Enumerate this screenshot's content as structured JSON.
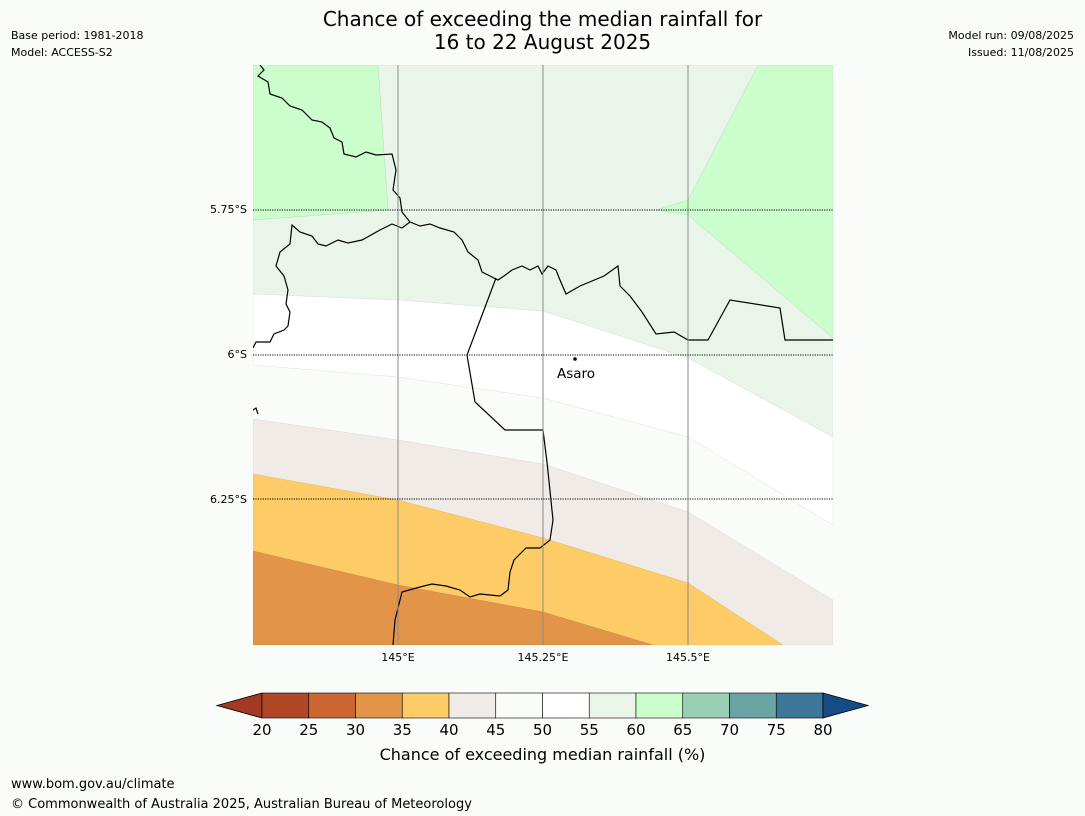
{
  "title": {
    "line1": "Chance of exceeding the median rainfall for",
    "line2": "16 to 22 August 2025"
  },
  "meta_left": {
    "base_period": "Base period: 1981-2018",
    "model": "Model: ACCESS-S2"
  },
  "meta_right": {
    "model_run": "Model run: 09/08/2025",
    "issued": "Issued: 11/08/2025"
  },
  "map": {
    "lat_labels": [
      "5.75°S",
      "6°S",
      "6.25°S"
    ],
    "lon_labels": [
      "145°E",
      "145.25°E",
      "145.5°E"
    ],
    "place": "Asaro"
  },
  "colorbar": {
    "ticks": [
      "20",
      "25",
      "30",
      "35",
      "40",
      "45",
      "50",
      "55",
      "60",
      "65",
      "70",
      "75",
      "80"
    ],
    "colors": [
      "#a13a20",
      "#b04825",
      "#cc6632",
      "#e29549",
      "#fdcc66",
      "#f0ebe7",
      "#fafcf9",
      "#ffffff",
      "#eaf5ea",
      "#ccfdcc",
      "#99cfb4",
      "#6ca3a3",
      "#3c7799",
      "#154c86"
    ],
    "label": "Chance of exceeding median rainfall (%)"
  },
  "footer": {
    "url": "www.bom.gov.au/climate",
    "copyright": "© Commonwealth of Australia 2025, Australian Bureau of Meteorology"
  }
}
